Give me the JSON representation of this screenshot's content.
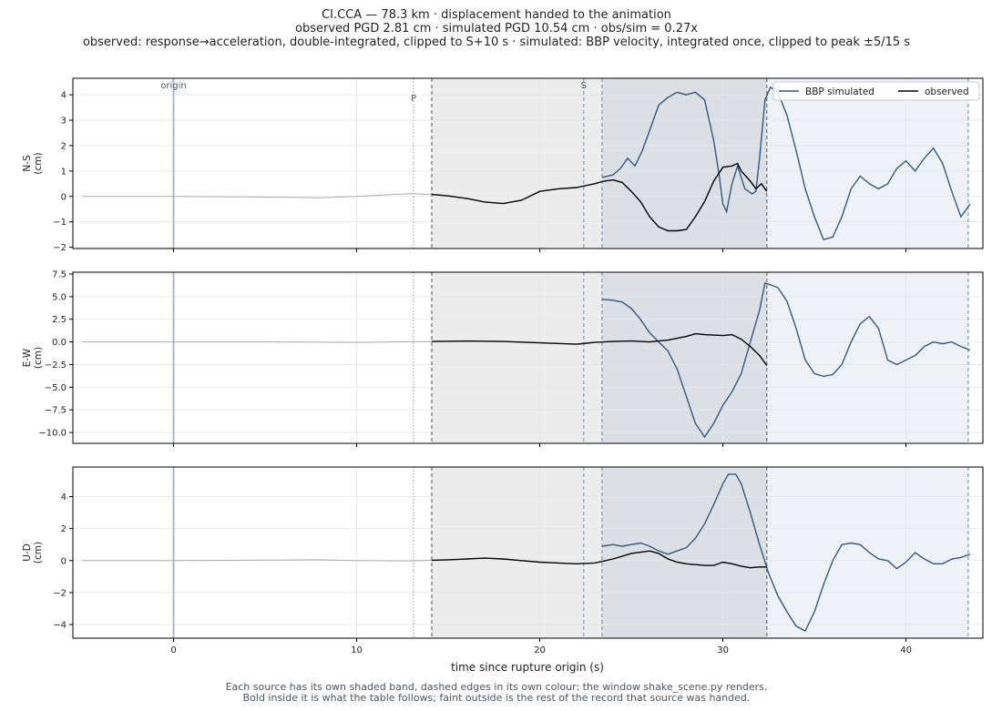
{
  "header": {
    "line1": "CI.CCA  —  78.3 km   ·   displacement handed to the animation",
    "line2": "observed PGD 2.81 cm   ·   simulated PGD 10.54 cm   ·   obs/sim = 0.27x",
    "line3": "observed: response→acceleration, double-integrated, clipped to S+10 s   ·   simulated: BBP velocity, integrated once, clipped to peak ±5/15 s"
  },
  "footer": {
    "line1": "Each source has its own shaded band, dashed edges in its own colour: the window shake_scene.py renders.",
    "line2": "Bold inside it is what the table follows;   faint outside is the rest of the record that source was handed."
  },
  "colors": {
    "simulated": "#2d5a87",
    "observed": "#000000",
    "faint": "#aaaaaa",
    "obs_band": "#ececec",
    "sim_band": "#eef2f6",
    "overlap_band": "#dcdfe4",
    "origin_line": "#a8b0c0"
  },
  "chart_data": {
    "type": "line",
    "xlabel": "time since rupture origin (s)",
    "xlim": [
      -5.5,
      44.2
    ],
    "xticks": [
      0,
      10,
      20,
      30,
      40
    ],
    "markers": {
      "origin": {
        "t": 0,
        "label": "origin"
      },
      "P": {
        "t": 13.1,
        "label": "P"
      },
      "S": {
        "t": 22.4,
        "label": "S"
      }
    },
    "windows": {
      "observed": [
        14.1,
        32.4
      ],
      "simulated": [
        23.4,
        43.4
      ]
    },
    "legend": {
      "position": "top-right",
      "entries": [
        "BBP simulated",
        "observed"
      ]
    },
    "panels": [
      {
        "name": "N-S",
        "ylabel": "N-S\n(cm)",
        "ylim": [
          -2.05,
          4.65
        ],
        "yticks": [
          -2,
          -1,
          0,
          1,
          2,
          3,
          4
        ],
        "ytick_labels": [
          "−2",
          "−1",
          "0",
          "1",
          "2",
          "3",
          "4"
        ],
        "observed_faint": [
          [
            -5,
            0
          ],
          [
            0,
            0
          ],
          [
            4,
            -0.02
          ],
          [
            8,
            -0.05
          ],
          [
            10,
            0
          ],
          [
            12,
            0.08
          ],
          [
            13,
            0.11
          ],
          [
            14.1,
            0.08
          ]
        ],
        "observed": [
          [
            14.1,
            0.08
          ],
          [
            15,
            0.02
          ],
          [
            16,
            -0.08
          ],
          [
            17,
            -0.22
          ],
          [
            18,
            -0.28
          ],
          [
            19,
            -0.15
          ],
          [
            20,
            0.2
          ],
          [
            21,
            0.3
          ],
          [
            22,
            0.35
          ],
          [
            23,
            0.5
          ],
          [
            23.5,
            0.6
          ],
          [
            24,
            0.65
          ],
          [
            24.5,
            0.55
          ],
          [
            25,
            0.2
          ],
          [
            25.5,
            -0.2
          ],
          [
            26,
            -0.8
          ],
          [
            26.5,
            -1.2
          ],
          [
            27,
            -1.35
          ],
          [
            27.5,
            -1.35
          ],
          [
            28,
            -1.3
          ],
          [
            28.5,
            -0.8
          ],
          [
            29,
            -0.2
          ],
          [
            29.5,
            0.6
          ],
          [
            30,
            1.15
          ],
          [
            30.5,
            1.2
          ],
          [
            30.8,
            1.3
          ],
          [
            31,
            1.0
          ],
          [
            31.5,
            0.6
          ],
          [
            31.8,
            0.3
          ],
          [
            32.1,
            0.5
          ],
          [
            32.4,
            0.2
          ]
        ],
        "simulated": [
          [
            23.4,
            0.75
          ],
          [
            24,
            0.85
          ],
          [
            24.4,
            1.1
          ],
          [
            24.8,
            1.5
          ],
          [
            25.2,
            1.2
          ],
          [
            25.6,
            1.8
          ],
          [
            26.0,
            2.6
          ],
          [
            26.5,
            3.6
          ],
          [
            27.0,
            3.9
          ],
          [
            27.5,
            4.1
          ],
          [
            28.0,
            4.0
          ],
          [
            28.5,
            4.1
          ],
          [
            29.0,
            3.8
          ],
          [
            29.5,
            2.2
          ],
          [
            29.8,
            0.8
          ],
          [
            30.0,
            -0.3
          ],
          [
            30.2,
            -0.6
          ],
          [
            30.5,
            0.5
          ],
          [
            30.8,
            1.2
          ],
          [
            31.2,
            0.3
          ],
          [
            31.6,
            0.1
          ],
          [
            31.8,
            0.2
          ],
          [
            32.0,
            1.5
          ],
          [
            32.3,
            3.8
          ],
          [
            32.6,
            4.3
          ],
          [
            33.0,
            4.1
          ],
          [
            33.5,
            3.2
          ],
          [
            34.0,
            1.8
          ],
          [
            34.5,
            0.3
          ],
          [
            35.0,
            -0.8
          ],
          [
            35.5,
            -1.7
          ],
          [
            36.0,
            -1.6
          ],
          [
            36.5,
            -0.8
          ],
          [
            37.0,
            0.3
          ],
          [
            37.5,
            0.8
          ],
          [
            38.0,
            0.5
          ],
          [
            38.5,
            0.3
          ],
          [
            39.0,
            0.5
          ],
          [
            39.5,
            1.1
          ],
          [
            40.0,
            1.4
          ],
          [
            40.5,
            1.0
          ],
          [
            41.0,
            1.5
          ],
          [
            41.5,
            1.9
          ],
          [
            42.0,
            1.3
          ],
          [
            42.5,
            0.2
          ],
          [
            43.0,
            -0.8
          ],
          [
            43.5,
            -0.3
          ]
        ]
      },
      {
        "name": "E-W",
        "ylabel": "E-W\n(cm)",
        "ylim": [
          -11.2,
          7.7
        ],
        "yticks": [
          -10,
          -7.5,
          -5,
          -2.5,
          0,
          2.5,
          5,
          7.5
        ],
        "ytick_labels": [
          "−10.0",
          "−7.5",
          "−5.0",
          "−2.5",
          "0.0",
          "2.5",
          "5.0",
          "7.5"
        ],
        "observed_faint": [
          [
            -5,
            0
          ],
          [
            0,
            0
          ],
          [
            5,
            0
          ],
          [
            10,
            -0.05
          ],
          [
            13,
            0.02
          ],
          [
            14.1,
            0.05
          ]
        ],
        "observed": [
          [
            14.1,
            0.05
          ],
          [
            16,
            0.1
          ],
          [
            18,
            0.05
          ],
          [
            20,
            -0.1
          ],
          [
            22,
            -0.25
          ],
          [
            23,
            -0.05
          ],
          [
            24,
            0.05
          ],
          [
            25,
            0.1
          ],
          [
            26,
            0.0
          ],
          [
            27,
            0.2
          ],
          [
            28,
            0.6
          ],
          [
            28.5,
            0.9
          ],
          [
            29,
            0.8
          ],
          [
            30,
            0.7
          ],
          [
            30.5,
            0.8
          ],
          [
            31,
            0.3
          ],
          [
            31.5,
            -0.5
          ],
          [
            32,
            -1.5
          ],
          [
            32.4,
            -2.6
          ]
        ],
        "simulated": [
          [
            23.4,
            4.7
          ],
          [
            24,
            4.6
          ],
          [
            24.5,
            4.4
          ],
          [
            25,
            3.7
          ],
          [
            25.5,
            2.5
          ],
          [
            26,
            1.0
          ],
          [
            26.5,
            0.0
          ],
          [
            27,
            -1.0
          ],
          [
            27.5,
            -3.0
          ],
          [
            28,
            -6.0
          ],
          [
            28.5,
            -9.0
          ],
          [
            29,
            -10.5
          ],
          [
            29.5,
            -9.0
          ],
          [
            30,
            -7.0
          ],
          [
            30.5,
            -5.5
          ],
          [
            31,
            -3.5
          ],
          [
            31.5,
            0.0
          ],
          [
            32,
            3.5
          ],
          [
            32.3,
            6.5
          ],
          [
            32.6,
            6.3
          ],
          [
            33,
            6.0
          ],
          [
            33.5,
            4.5
          ],
          [
            34,
            1.5
          ],
          [
            34.5,
            -2.0
          ],
          [
            35,
            -3.5
          ],
          [
            35.5,
            -3.8
          ],
          [
            36,
            -3.6
          ],
          [
            36.5,
            -2.5
          ],
          [
            37,
            0.0
          ],
          [
            37.5,
            2.0
          ],
          [
            38,
            2.8
          ],
          [
            38.5,
            1.5
          ],
          [
            39,
            -2.0
          ],
          [
            39.5,
            -2.5
          ],
          [
            40,
            -2.0
          ],
          [
            40.5,
            -1.5
          ],
          [
            41,
            -0.5
          ],
          [
            41.5,
            0.0
          ],
          [
            42,
            -0.2
          ],
          [
            42.5,
            0.0
          ],
          [
            43,
            -0.5
          ],
          [
            43.5,
            -0.9
          ]
        ]
      },
      {
        "name": "U-D",
        "ylabel": "U-D\n(cm)",
        "ylim": [
          -4.85,
          5.85
        ],
        "yticks": [
          -4,
          -2,
          0,
          2,
          4
        ],
        "ytick_labels": [
          "−4",
          "−2",
          "0",
          "2",
          "4"
        ],
        "observed_faint": [
          [
            -5,
            0
          ],
          [
            0,
            0
          ],
          [
            4,
            0.02
          ],
          [
            8,
            0.05
          ],
          [
            10,
            0
          ],
          [
            13,
            -0.02
          ],
          [
            14.1,
            0.02
          ]
        ],
        "observed": [
          [
            14.1,
            0.02
          ],
          [
            15,
            0.05
          ],
          [
            16,
            0.1
          ],
          [
            17,
            0.15
          ],
          [
            18,
            0.1
          ],
          [
            19,
            0.0
          ],
          [
            20,
            -0.1
          ],
          [
            21,
            -0.15
          ],
          [
            22,
            -0.2
          ],
          [
            23,
            -0.15
          ],
          [
            24,
            0.1
          ],
          [
            25,
            0.45
          ],
          [
            26,
            0.6
          ],
          [
            26.5,
            0.45
          ],
          [
            27,
            0.1
          ],
          [
            27.5,
            -0.1
          ],
          [
            28,
            -0.2
          ],
          [
            29,
            -0.3
          ],
          [
            29.5,
            -0.3
          ],
          [
            30,
            -0.1
          ],
          [
            30.5,
            -0.2
          ],
          [
            31,
            -0.35
          ],
          [
            31.5,
            -0.45
          ],
          [
            32,
            -0.4
          ],
          [
            32.4,
            -0.4
          ]
        ],
        "simulated": [
          [
            23.4,
            0.9
          ],
          [
            24,
            1.0
          ],
          [
            24.5,
            0.9
          ],
          [
            25,
            1.0
          ],
          [
            25.5,
            1.1
          ],
          [
            26,
            0.9
          ],
          [
            26.5,
            0.6
          ],
          [
            27,
            0.4
          ],
          [
            27.5,
            0.6
          ],
          [
            28,
            0.8
          ],
          [
            28.5,
            1.4
          ],
          [
            29,
            2.3
          ],
          [
            29.5,
            3.5
          ],
          [
            30,
            4.8
          ],
          [
            30.3,
            5.4
          ],
          [
            30.7,
            5.4
          ],
          [
            31,
            4.8
          ],
          [
            31.5,
            3.0
          ],
          [
            32,
            1.0
          ],
          [
            32.5,
            -0.8
          ],
          [
            33,
            -2.2
          ],
          [
            33.5,
            -3.2
          ],
          [
            34,
            -4.1
          ],
          [
            34.5,
            -4.4
          ],
          [
            35,
            -3.2
          ],
          [
            35.5,
            -1.5
          ],
          [
            36,
            0.0
          ],
          [
            36.5,
            1.0
          ],
          [
            37,
            1.1
          ],
          [
            37.5,
            1.0
          ],
          [
            38,
            0.5
          ],
          [
            38.5,
            0.1
          ],
          [
            39,
            0.0
          ],
          [
            39.5,
            -0.5
          ],
          [
            40,
            -0.1
          ],
          [
            40.5,
            0.5
          ],
          [
            41,
            0.1
          ],
          [
            41.5,
            -0.2
          ],
          [
            42,
            -0.2
          ],
          [
            42.5,
            0.1
          ],
          [
            43,
            0.2
          ],
          [
            43.5,
            0.4
          ]
        ]
      }
    ]
  }
}
